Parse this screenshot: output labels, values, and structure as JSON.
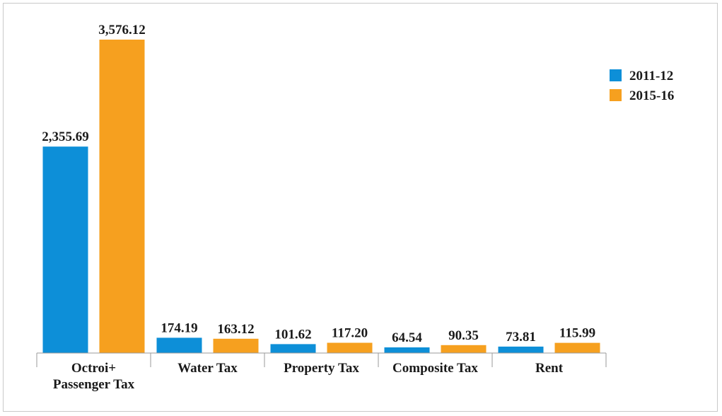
{
  "chart_data": {
    "type": "bar",
    "categories": [
      [
        "Octroi+",
        "Passenger Tax"
      ],
      [
        "Water Tax"
      ],
      [
        "Property Tax"
      ],
      [
        "Composite Tax"
      ],
      [
        "Rent"
      ]
    ],
    "series": [
      {
        "name": "2011-12",
        "color": "#0d8fd8",
        "values": [
          2355.69,
          174.19,
          101.62,
          64.54,
          73.81
        ],
        "labels": [
          "2,355.69",
          "174.19",
          "101.62",
          "64.54",
          "73.81"
        ]
      },
      {
        "name": "2015-16",
        "color": "#f6a01f",
        "values": [
          3576.12,
          163.12,
          117.2,
          90.35,
          115.99
        ],
        "labels": [
          "3,576.12",
          "163.12",
          "117.20",
          "90.35",
          "115.99"
        ]
      }
    ],
    "ylim": [
      0,
      3576.12
    ],
    "legend_position": "top-right",
    "grid": false,
    "axis_color": "#9a9a9a"
  }
}
